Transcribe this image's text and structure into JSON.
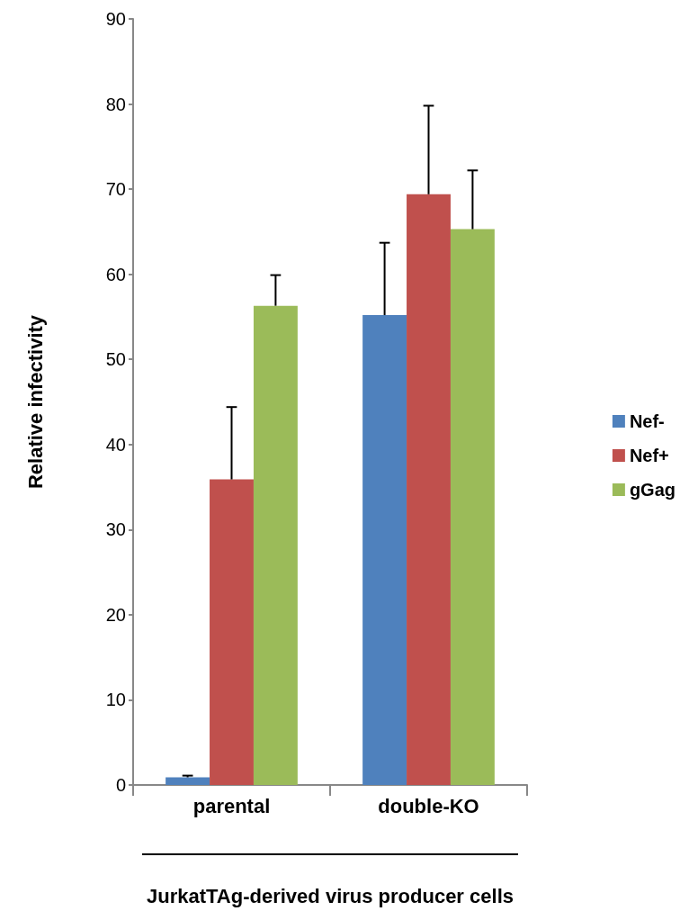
{
  "chart_data": {
    "type": "bar",
    "categories": [
      "parental",
      "double-KO"
    ],
    "xlabel": "JurkatTAg-derived virus producer cells",
    "ylabel": "Relative infectivity",
    "ylim": [
      0,
      90
    ],
    "yticks": [
      0,
      10,
      20,
      30,
      40,
      50,
      60,
      70,
      80,
      90
    ],
    "grid": false,
    "legend": "right",
    "series": [
      {
        "name": "Nef-",
        "color": "#4f81bd",
        "values": [
          0.9,
          55.2
        ],
        "errors": [
          [
            0.9,
            1.1
          ],
          [
            55.2,
            63.7
          ]
        ]
      },
      {
        "name": "Nef+",
        "color": "#c0504d",
        "values": [
          35.9,
          69.4
        ],
        "errors": [
          [
            35.9,
            44.4
          ],
          [
            69.4,
            79.8
          ]
        ]
      },
      {
        "name": "gGag",
        "color": "#9bbb59",
        "values": [
          56.3,
          65.3
        ],
        "errors": [
          [
            56.3,
            59.9
          ],
          [
            65.3,
            72.2
          ]
        ]
      }
    ]
  }
}
